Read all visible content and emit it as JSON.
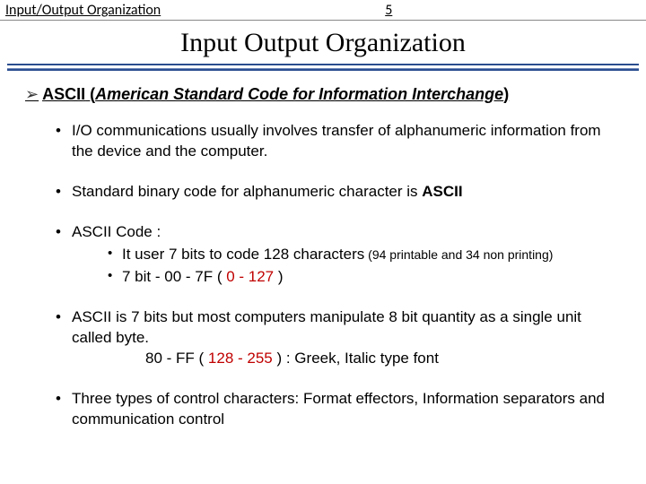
{
  "header": {
    "left": "Input/Output Organization",
    "page_num": "5"
  },
  "title": "Input Output Organization",
  "section": {
    "arrow": "➢",
    "ascii": "ASCII",
    "expansion": "American Standard Code for Information Interchange"
  },
  "bullets": {
    "b1": "I/O communications usually involves  transfer of alphanumeric information from the device and the computer.",
    "b2_pre": "Standard binary code for alphanumeric character is ",
    "b2_bold": "ASCII",
    "b3": "ASCII Code :",
    "b3s1_pre": "It user 7 bits to code 128 characters",
    "b3s1_small": " (94 printable and 34 non printing)",
    "b3s2_a": " 7 bit -       00 - 7F ( ",
    "b3s2_range": "0 - 127",
    "b3s2_b": " )",
    "b4_line1": "ASCII is 7 bits but most computers manipulate 8 bit quantity as a single unit called byte.",
    "b4_line2a": "80 - FF ( ",
    "b4_line2_range": "128 - 255",
    "b4_line2b": " ) : Greek, Italic type font",
    "b5": "Three types of control characters: Format effectors, Information separators and communication control"
  },
  "colors": {
    "rule_dark": "#2a4d8f",
    "rule_mid": "#6b86b8",
    "red": "#c00000"
  }
}
